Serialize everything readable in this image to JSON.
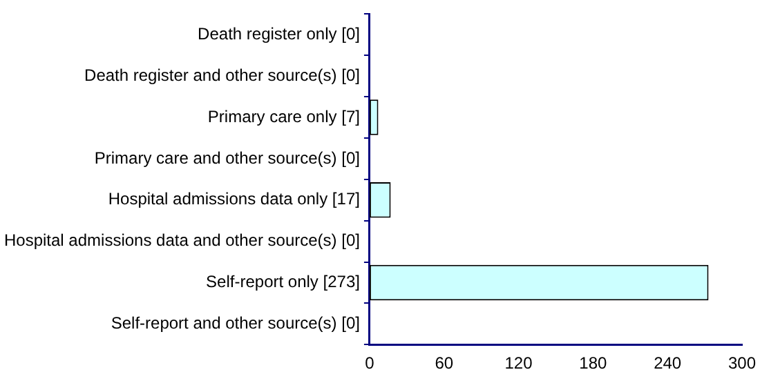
{
  "chart_data": {
    "type": "bar",
    "orientation": "horizontal",
    "categories": [
      "Death register only [0]",
      "Death register and other source(s) [0]",
      "Primary care only [7]",
      "Primary care and other source(s) [0]",
      "Hospital admissions data only [17]",
      "Hospital admissions data and other source(s) [0]",
      "Self-report only [273]",
      "Self-report and other source(s) [0]"
    ],
    "values": [
      0,
      0,
      7,
      0,
      17,
      0,
      273,
      0
    ],
    "color": "#ccffff",
    "xlim": [
      0,
      300
    ],
    "xticks": [
      0,
      60,
      120,
      180,
      240,
      300
    ],
    "grid": false,
    "legend": false
  }
}
